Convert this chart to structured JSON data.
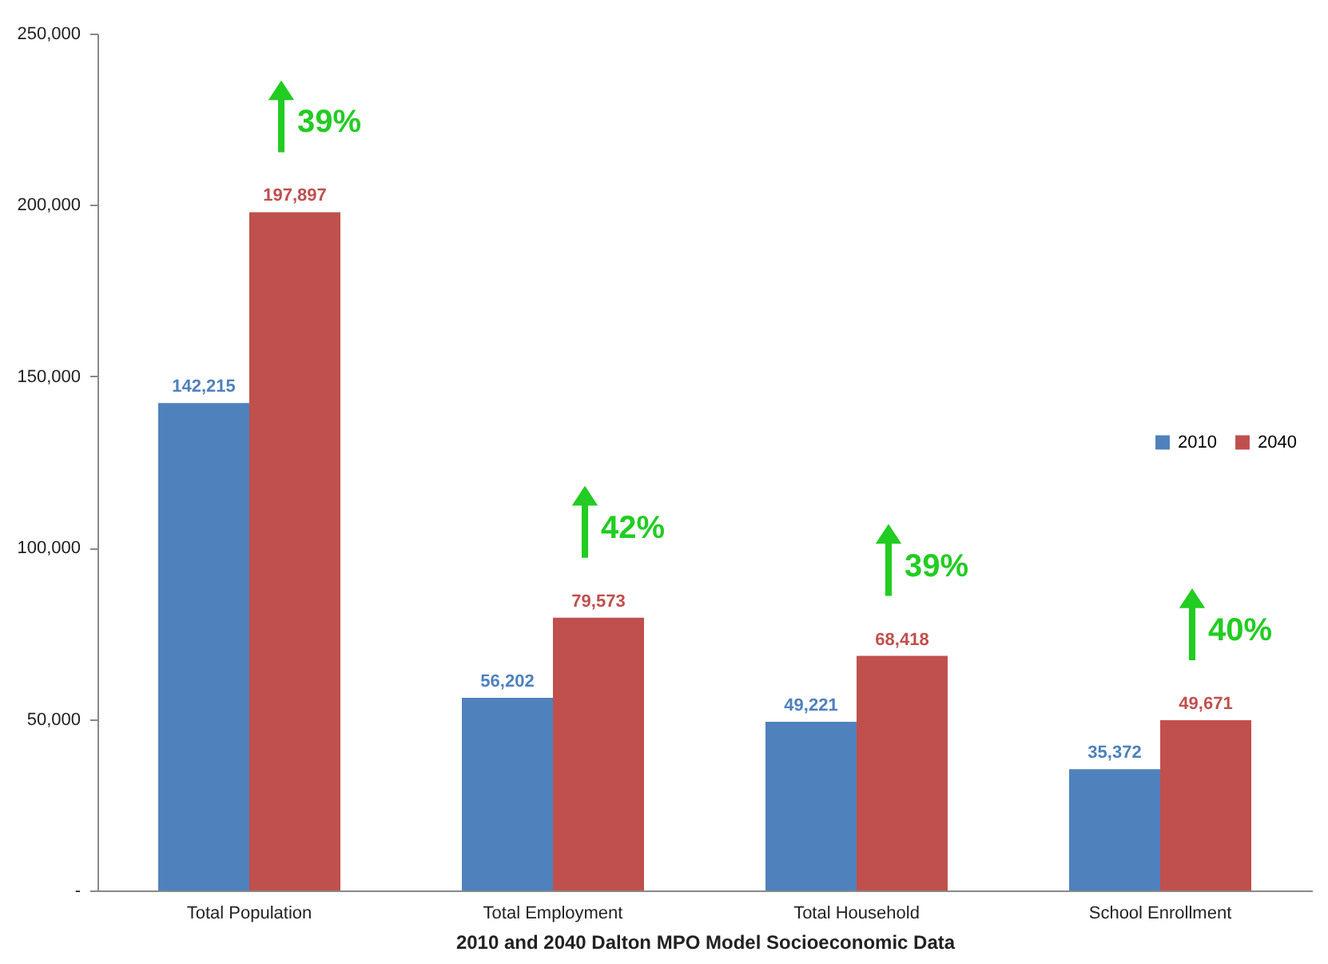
{
  "chart_data": {
    "type": "bar",
    "xlabel": "2010 and 2040 Dalton MPO Model Socioeconomic  Data",
    "categories": [
      "Total Population",
      "Total Employment",
      "Total Household",
      "School Enrollment"
    ],
    "series": [
      {
        "name": "2010",
        "color": "#4f81bd",
        "values": [
          142215,
          56202,
          49221,
          35372
        ],
        "value_labels": [
          "142,215",
          "56,202",
          "49,221",
          "35,372"
        ]
      },
      {
        "name": "2040",
        "color": "#c0504d",
        "values": [
          197897,
          79573,
          68418,
          49671
        ],
        "value_labels": [
          "197,897",
          "79,573",
          "68,418",
          "49,671"
        ]
      }
    ],
    "ylim": [
      0,
      250000
    ],
    "yticks": [
      {
        "value": 0,
        "label": "-"
      },
      {
        "value": 50000,
        "label": "50,000"
      },
      {
        "value": 100000,
        "label": "100,000"
      },
      {
        "value": 150000,
        "label": "150,000"
      },
      {
        "value": 200000,
        "label": "200,000"
      },
      {
        "value": 250000,
        "label": "250,000"
      }
    ],
    "legend": "right",
    "grid": false,
    "annotations": [
      "39%",
      "42%",
      "39%",
      "40%"
    ]
  }
}
